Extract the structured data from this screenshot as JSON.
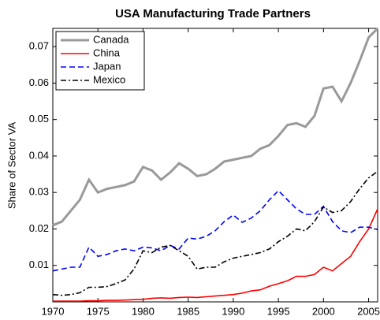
{
  "chart_data": {
    "type": "line",
    "title": "USA Manufacturing Trade Partners",
    "y_label": "Share of Sector VA",
    "x": [
      1970,
      1971,
      1972,
      1973,
      1974,
      1975,
      1976,
      1977,
      1978,
      1979,
      1980,
      1981,
      1982,
      1983,
      1984,
      1985,
      1986,
      1987,
      1988,
      1989,
      1990,
      1991,
      1992,
      1993,
      1994,
      1995,
      1996,
      1997,
      1998,
      1999,
      2000,
      2001,
      2002,
      2003,
      2004,
      2005,
      2006
    ],
    "xlim": [
      1970,
      2006
    ],
    "xticks": [
      1970,
      1975,
      1980,
      1985,
      1990,
      1995,
      2000,
      2005
    ],
    "ylim": [
      0,
      0.075
    ],
    "yticks": [
      0.01,
      0.02,
      0.03,
      0.04,
      0.05,
      0.06,
      0.07
    ],
    "legend": "upper left",
    "series": [
      {
        "name": "Canada",
        "color": "#999999",
        "linestyle": "solid",
        "values": [
          0.021,
          0.022,
          0.025,
          0.028,
          0.0335,
          0.03,
          0.031,
          0.0315,
          0.032,
          0.033,
          0.037,
          0.036,
          0.0335,
          0.0355,
          0.038,
          0.0365,
          0.0345,
          0.035,
          0.0365,
          0.0385,
          0.039,
          0.0395,
          0.04,
          0.042,
          0.043,
          0.0455,
          0.0485,
          0.049,
          0.048,
          0.051,
          0.0585,
          0.059,
          0.055,
          0.06,
          0.066,
          0.0725,
          0.075
        ]
      },
      {
        "name": "China",
        "color": "#ff0000",
        "linestyle": "solid",
        "values": [
          0.0002,
          0.0002,
          0.0002,
          0.0002,
          0.0003,
          0.0003,
          0.0004,
          0.0004,
          0.0005,
          0.0006,
          0.0007,
          0.001,
          0.0011,
          0.001,
          0.0012,
          0.0013,
          0.0012,
          0.0014,
          0.0016,
          0.0018,
          0.002,
          0.0024,
          0.003,
          0.0033,
          0.0043,
          0.005,
          0.0058,
          0.007,
          0.007,
          0.0075,
          0.0095,
          0.0085,
          0.0105,
          0.0125,
          0.0165,
          0.02,
          0.0255
        ]
      },
      {
        "name": "Japan",
        "color": "#0000ff",
        "linestyle": "dashed",
        "values": [
          0.0085,
          0.009,
          0.0095,
          0.0095,
          0.015,
          0.0125,
          0.013,
          0.014,
          0.0145,
          0.014,
          0.015,
          0.0148,
          0.014,
          0.0155,
          0.0145,
          0.0175,
          0.0172,
          0.018,
          0.0195,
          0.022,
          0.0238,
          0.0218,
          0.023,
          0.025,
          0.028,
          0.0305,
          0.028,
          0.0255,
          0.024,
          0.024,
          0.0262,
          0.022,
          0.0195,
          0.019,
          0.0205,
          0.0205,
          0.0198
        ]
      },
      {
        "name": "Mexico",
        "color": "#000000",
        "linestyle": "dashdot",
        "values": [
          0.002,
          0.0018,
          0.002,
          0.0025,
          0.004,
          0.004,
          0.0042,
          0.005,
          0.006,
          0.009,
          0.014,
          0.0135,
          0.015,
          0.0155,
          0.014,
          0.0125,
          0.009,
          0.0095,
          0.0095,
          0.011,
          0.012,
          0.0125,
          0.013,
          0.0135,
          0.0145,
          0.0165,
          0.018,
          0.02,
          0.0195,
          0.022,
          0.026,
          0.0245,
          0.025,
          0.0275,
          0.031,
          0.034,
          0.0358
        ]
      }
    ]
  }
}
